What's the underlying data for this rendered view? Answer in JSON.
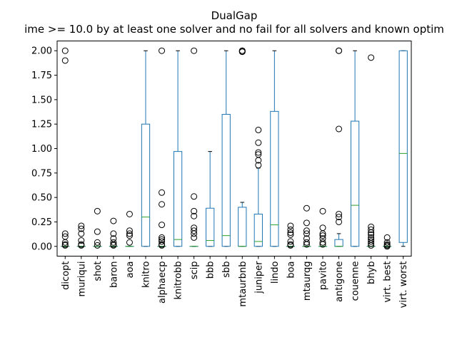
{
  "chart_data": {
    "type": "box",
    "title": "DualGap",
    "subtitle": "ime >= 10.0 by at least one solver and no fail for all solvers and known optim",
    "xlabel": "",
    "ylabel": "",
    "ylim": [
      -0.1,
      2.1
    ],
    "yticks": [
      "0.00",
      "0.25",
      "0.50",
      "0.75",
      "1.00",
      "1.25",
      "1.50",
      "1.75",
      "2.00"
    ],
    "grid": false,
    "colors": {
      "box": "#1f77b4",
      "median": "#2ca02c",
      "outlier": "#000000"
    },
    "categories": [
      "dicopt",
      "muriqui",
      "shot",
      "baron",
      "aoa",
      "knitro",
      "alphaecp",
      "knitrobb",
      "scip",
      "bbb",
      "sbb",
      "mtaurbnb",
      "juniper",
      "lindo",
      "boa",
      "mtaurqg",
      "pavito",
      "antigone",
      "couenne",
      "bhyb",
      "virt. best",
      "virt. worst"
    ],
    "boxes": [
      {
        "q1": 0,
        "median": 0,
        "q3": 0,
        "whislo": 0,
        "whishi": 0,
        "fliers": [
          2.0,
          1.9,
          0.13,
          0.1,
          0.04,
          0.02,
          0.01
        ]
      },
      {
        "q1": 0,
        "median": 0,
        "q3": 0,
        "whislo": 0,
        "whishi": 0,
        "fliers": [
          0.21,
          0.18,
          0.13,
          0.06,
          0.02,
          0.01
        ]
      },
      {
        "q1": 0,
        "median": 0,
        "q3": 0,
        "whislo": 0,
        "whishi": 0,
        "fliers": [
          0.36,
          0.15,
          0.04,
          0.01
        ]
      },
      {
        "q1": 0,
        "median": 0,
        "q3": 0,
        "whislo": 0,
        "whishi": 0,
        "fliers": [
          0.26,
          0.13,
          0.08,
          0.04,
          0.02,
          0.01
        ]
      },
      {
        "q1": 0,
        "median": 0,
        "q3": 0,
        "whislo": 0,
        "whishi": 0,
        "fliers": [
          0.33,
          0.16,
          0.13,
          0.11,
          0.04
        ]
      },
      {
        "q1": 0,
        "median": 0.3,
        "q3": 1.25,
        "whislo": 0,
        "whishi": 2.0,
        "fliers": []
      },
      {
        "q1": 0,
        "median": 0,
        "q3": 0,
        "whislo": 0,
        "whishi": 0,
        "fliers": [
          2.0,
          0.55,
          0.43,
          0.22,
          0.09,
          0.07,
          0.05,
          0.02,
          0.01
        ]
      },
      {
        "q1": 0,
        "median": 0.07,
        "q3": 0.97,
        "whislo": 0,
        "whishi": 2.0,
        "fliers": []
      },
      {
        "q1": 0,
        "median": 0,
        "q3": 0,
        "whislo": 0,
        "whishi": 0,
        "fliers": [
          2.0,
          0.51,
          0.36,
          0.31,
          0.19,
          0.16,
          0.13,
          0.09
        ]
      },
      {
        "q1": 0,
        "median": 0.06,
        "q3": 0.39,
        "whislo": 0,
        "whishi": 0.97,
        "fliers": []
      },
      {
        "q1": 0,
        "median": 0.11,
        "q3": 1.35,
        "whislo": 0,
        "whishi": 2.0,
        "fliers": []
      },
      {
        "q1": 0,
        "median": 0,
        "q3": 0.4,
        "whislo": 0,
        "whishi": 0.45,
        "fliers": [
          2.0,
          2.0,
          1.99,
          1.99
        ]
      },
      {
        "q1": 0,
        "median": 0.05,
        "q3": 0.33,
        "whislo": 0,
        "whishi": 0.8,
        "fliers": [
          1.19,
          1.06,
          0.96,
          0.94,
          0.88,
          0.83
        ]
      },
      {
        "q1": 0,
        "median": 0.22,
        "q3": 1.38,
        "whislo": 0,
        "whishi": 2.0,
        "fliers": []
      },
      {
        "q1": 0,
        "median": 0,
        "q3": 0,
        "whislo": 0,
        "whishi": 0,
        "fliers": [
          0.21,
          0.17,
          0.14,
          0.12,
          0.05,
          0.02,
          0.01
        ]
      },
      {
        "q1": 0,
        "median": 0,
        "q3": 0,
        "whislo": 0,
        "whishi": 0,
        "fliers": [
          0.39,
          0.24,
          0.16,
          0.13,
          0.08,
          0.04,
          0.02
        ]
      },
      {
        "q1": 0,
        "median": 0,
        "q3": 0,
        "whislo": 0,
        "whishi": 0,
        "fliers": [
          0.36,
          0.19,
          0.13,
          0.11,
          0.08,
          0.04,
          0.02
        ]
      },
      {
        "q1": 0,
        "median": 0,
        "q3": 0.07,
        "whislo": 0,
        "whishi": 0.13,
        "fliers": [
          2.0,
          2.0,
          1.2,
          0.33,
          0.3,
          0.25
        ]
      },
      {
        "q1": 0,
        "median": 0.42,
        "q3": 1.28,
        "whislo": 0,
        "whishi": 2.0,
        "fliers": []
      },
      {
        "q1": 0,
        "median": 0,
        "q3": 0,
        "whislo": 0,
        "whishi": 0,
        "fliers": [
          1.93,
          0.2,
          0.17,
          0.14,
          0.12,
          0.09,
          0.07,
          0.05,
          0.03,
          0.01
        ]
      },
      {
        "q1": 0,
        "median": 0,
        "q3": 0,
        "whislo": 0,
        "whishi": 0,
        "fliers": [
          0.09,
          0.04,
          0.02,
          0.01,
          0.0
        ]
      },
      {
        "q1": 0.04,
        "median": 0.95,
        "q3": 2.0,
        "whislo": 0,
        "whishi": 2.0,
        "fliers": []
      }
    ]
  }
}
